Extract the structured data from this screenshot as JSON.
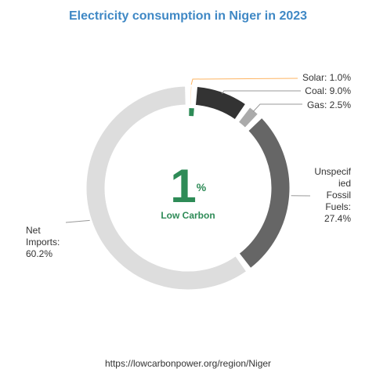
{
  "chart_data": {
    "type": "pie",
    "title": "Electricity consumption in Niger in 2023",
    "center": {
      "value": "1",
      "unit": "%",
      "label": "Low Carbon"
    },
    "slices": [
      {
        "key": "solar",
        "label_lines": [
          "Solar: 1.0%"
        ],
        "value": 1.0,
        "color": "#fdb462"
      },
      {
        "key": "coal",
        "label_lines": [
          "Coal: 9.0%"
        ],
        "value": 9.0,
        "color": "#333333"
      },
      {
        "key": "gas",
        "label_lines": [
          "Gas: 2.5%"
        ],
        "value": 2.5,
        "color": "#aaaaaa"
      },
      {
        "key": "unspecified",
        "label_lines": [
          "Unspecif",
          "ied",
          "Fossil",
          "Fuels:",
          "27.4%"
        ],
        "value": 27.4,
        "color": "#666666"
      },
      {
        "key": "imports",
        "label_lines": [
          "Net",
          "Imports:",
          "60.2%"
        ],
        "value": 60.2,
        "color": "#dddddd"
      }
    ],
    "low_carbon_fraction": 0.01,
    "low_carbon_color": "#2e8b57"
  },
  "source": "https://lowcarbonpower.org/region/Niger"
}
